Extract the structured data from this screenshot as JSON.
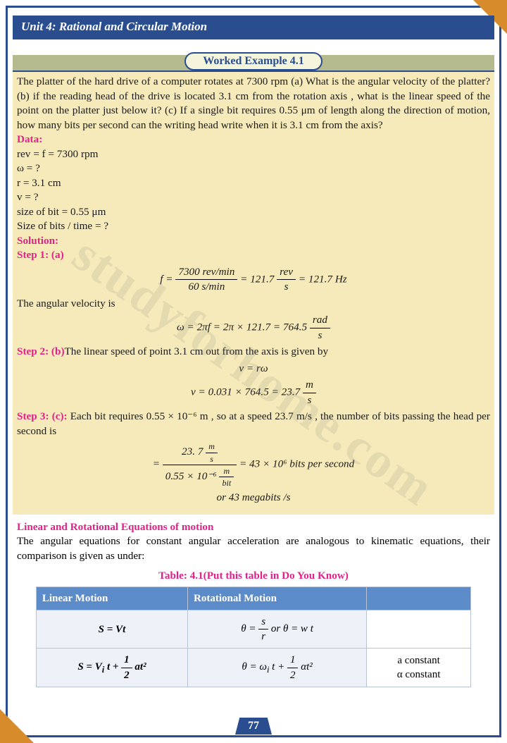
{
  "header": {
    "unit_title": "Unit 4: Rational and Circular Motion"
  },
  "example": {
    "title": "Worked Example 4.1",
    "problem": "The platter of the hard drive of a computer rotates at 7300 rpm (a) What is the angular velocity of the platter? (b) if the reading head of the drive is located 3.1 cm from the rotation axis , what is the linear speed of the point on the platter just below it? (c) If a single bit requires 0.55 μm of length along the direction of motion, how many bits per second can the writing head write when it is 3.1 cm from the axis?",
    "data_label": "Data:",
    "data_lines": [
      "rev = f = 7300 rpm",
      "ω = ?",
      "r = 3.1 cm",
      "v = ?",
      "size of bit = 0.55 μm",
      "Size of bits / time = ?"
    ],
    "solution_label": "Solution:",
    "step1_label": "Step 1: (a)",
    "eq1_num": "7300 rev/min",
    "eq1_den": "60 s/min",
    "eq1_mid": "= 121.7",
    "eq1_unit_num": "rev",
    "eq1_unit_den": "s",
    "eq1_tail": "=  121.7 Hz",
    "ang_vel_text": "The angular velocity is",
    "eq2_lhs": "ω = 2πf = 2π × 121.7 = 764.5",
    "eq2_unit_num": "rad",
    "eq2_unit_den": "s",
    "step2_label": "Step 2: (b)",
    "step2_text": "The linear speed of point 3.1 cm out from the axis is given by",
    "eq3a": "v  = rω",
    "eq3b_lhs": "v = 0.031 × 764.5 = 23.7",
    "eq3b_num": "m",
    "eq3b_den": "s",
    "step3_label": "Step 3: (c):",
    "step3_text": " Each bit requires 0.55 × 10⁻⁶  m , so at a speed 23.7 m/s , the number of bits passing the head per second is",
    "eq4_num": "23. 7",
    "eq4_numu_n": "m",
    "eq4_numu_d": "s",
    "eq4_den": "0.55 × 10⁻⁶",
    "eq4_denu_n": "m",
    "eq4_denu_d": "bit",
    "eq4_rhs": "= 43  × 10⁶ bits per second",
    "eq4_line2": "or 43 megabits /s"
  },
  "after": {
    "heading": "Linear and Rotational Equations of motion",
    "para": "The angular equations for constant angular acceleration are analogous to kinematic equations, their comparison is given as under:"
  },
  "table": {
    "title": "Table: 4.1(Put this table in Do You Know)",
    "col1": "Linear Motion",
    "col2": "Rotational Motion",
    "r1c1": "S  =  Vt",
    "r1c2_a": "θ =",
    "r1c2_num": "s",
    "r1c2_den": "r",
    "r1c2_b": " or θ = w t",
    "r2c1_a": "S = V",
    "r2c1_sub": "i",
    "r2c1_b": " t +",
    "r2c1_num": "1",
    "r2c1_den": "2",
    "r2c1_c": " at²",
    "r2c2_a": "θ =  ω",
    "r2c2_sub": "i",
    "r2c2_b": " t +",
    "r2c2_num": "1",
    "r2c2_den": "2",
    "r2c2_c": "αt²",
    "r2c3a": "a constant",
    "r2c3b": "α constant"
  },
  "page_number": "77",
  "watermark": "studyforhome.com",
  "colors": {
    "primary": "#2a4d8f",
    "accent": "#d78b2a",
    "example_bg": "#f6eaba",
    "pink": "#e0218a",
    "table_header": "#5b8bc9",
    "table_cell": "#eef2f8"
  }
}
